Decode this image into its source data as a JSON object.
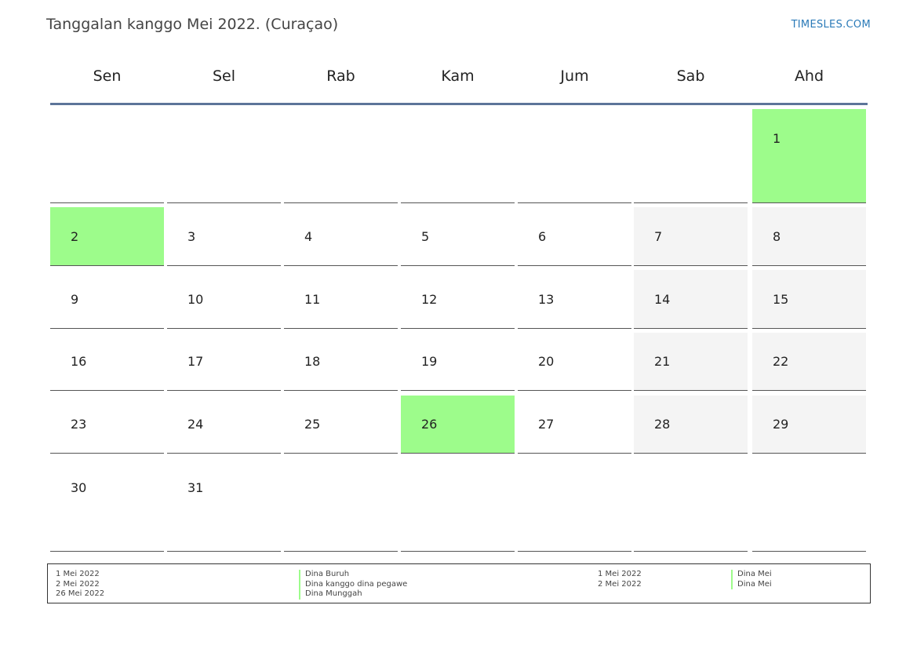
{
  "header": {
    "title": "Tanggalan kanggo Mei 2022. (Curaçao)",
    "brand": "TIMESLES.COM"
  },
  "weekdays": [
    "Sen",
    "Sel",
    "Rab",
    "Kam",
    "Jum",
    "Sab",
    "Ahd"
  ],
  "colors": {
    "holiday": "#9dfc8b",
    "weekend": "#f4f4f4",
    "header_line": "#5d7599",
    "brand": "#2a7ab8"
  },
  "weeks": [
    [
      null,
      null,
      null,
      null,
      null,
      null,
      1
    ],
    [
      2,
      3,
      4,
      5,
      6,
      7,
      8
    ],
    [
      9,
      10,
      11,
      12,
      13,
      14,
      15
    ],
    [
      16,
      17,
      18,
      19,
      20,
      21,
      22
    ],
    [
      23,
      24,
      25,
      26,
      27,
      28,
      29
    ],
    [
      30,
      31,
      null,
      null,
      null,
      null,
      null
    ]
  ],
  "holiday_days": [
    1,
    2,
    26
  ],
  "legend": {
    "left_dates": [
      "1 Mei 2022",
      "2 Mei 2022",
      "26 Mei 2022"
    ],
    "left_names": [
      "Dina Buruh",
      "Dina kanggo dina pegawe",
      "Dina Munggah"
    ],
    "right_dates": [
      "1 Mei 2022",
      "2 Mei 2022"
    ],
    "right_names": [
      "Dina Mei",
      "Dina Mei"
    ]
  }
}
